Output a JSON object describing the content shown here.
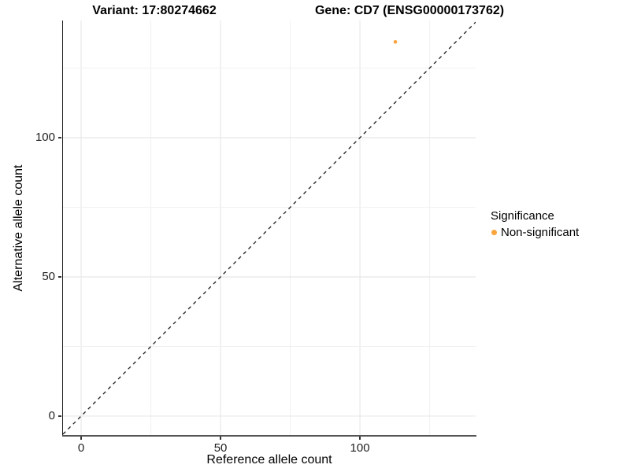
{
  "chart_data": {
    "type": "scatter",
    "titles": {
      "left": "Variant: 17:80274662",
      "right": "Gene: CD7 (ENSG00000173762)"
    },
    "xlabel": "Reference allele count",
    "ylabel": "Alternative allele count",
    "xlim": [
      -6.5,
      141.5
    ],
    "ylim": [
      -6.8,
      142.1
    ],
    "x_major_ticks": [
      0,
      50,
      100
    ],
    "y_major_ticks": [
      0,
      50,
      100
    ],
    "x_gridlines": [
      0,
      25,
      50,
      75,
      100,
      125
    ],
    "y_gridlines": [
      0,
      25,
      50,
      75,
      100,
      125
    ],
    "grid": true,
    "background": "#ffffff",
    "reference_line": {
      "equation": "y = x",
      "style": "dashed",
      "color": "#1a1a1a"
    },
    "legend": {
      "position": "right",
      "title": "Significance",
      "items": [
        {
          "label": "Non-significant",
          "color": "#F9A43C"
        }
      ]
    },
    "series": [
      {
        "name": "Non-significant",
        "color": "#F9A43C",
        "points": [
          {
            "x": 112.7,
            "y": 134.4
          }
        ]
      }
    ]
  }
}
